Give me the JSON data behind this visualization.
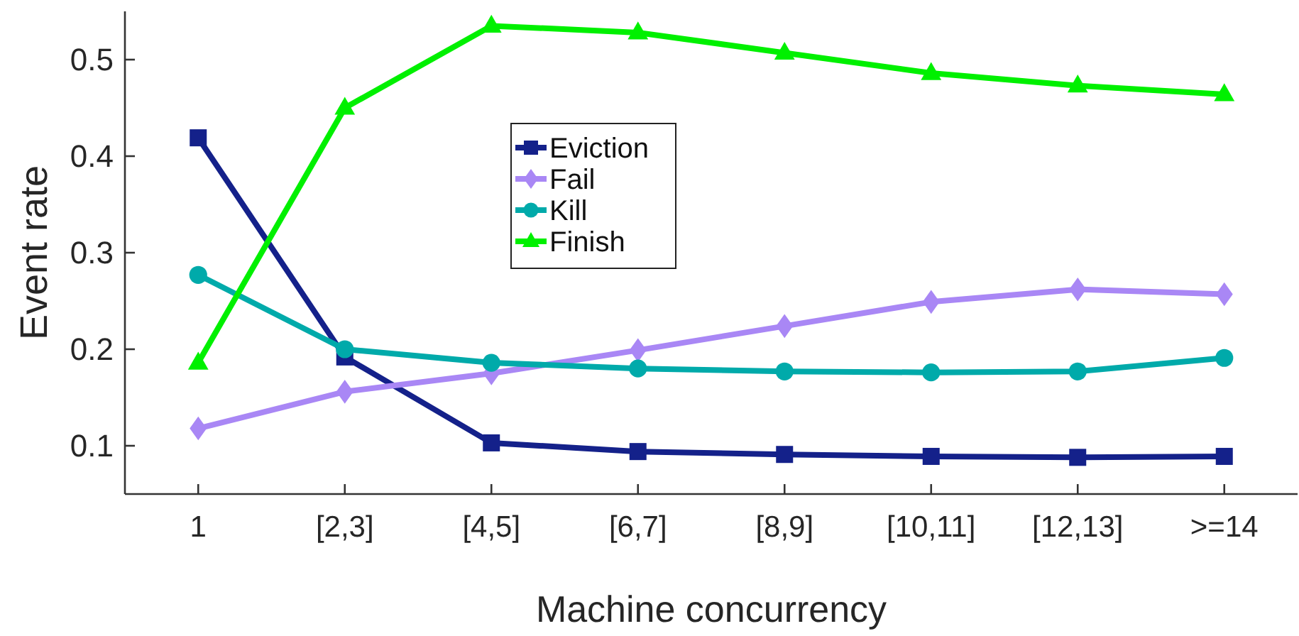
{
  "chart_data": {
    "type": "line",
    "xlabel": "Machine concurrency",
    "ylabel": "Event rate",
    "categories": [
      "1",
      "[2,3]",
      "[4,5]",
      "[6,7]",
      "[8,9]",
      "[10,11]",
      "[12,13]",
      ">=14"
    ],
    "ylim": [
      0.05,
      0.55
    ],
    "yticks": [
      0.1,
      0.2,
      0.3,
      0.4,
      0.5
    ],
    "grid": false,
    "legend": "top",
    "line_style": "solid",
    "series": [
      {
        "name": "Eviction",
        "color": "#14218a",
        "marker": "square",
        "values": [
          0.419,
          0.192,
          0.103,
          0.094,
          0.091,
          0.089,
          0.088,
          0.089
        ]
      },
      {
        "name": "Fail",
        "color": "#a987f5",
        "marker": "diamond",
        "values": [
          0.118,
          0.156,
          0.175,
          0.199,
          0.224,
          0.249,
          0.262,
          0.257
        ]
      },
      {
        "name": "Kill",
        "color": "#00aaaa",
        "marker": "circle",
        "values": [
          0.277,
          0.2,
          0.186,
          0.18,
          0.177,
          0.176,
          0.177,
          0.191
        ]
      },
      {
        "name": "Finish",
        "color": "#00f000",
        "marker": "triangle",
        "values": [
          0.186,
          0.45,
          0.535,
          0.528,
          0.507,
          0.486,
          0.473,
          0.464
        ]
      }
    ]
  }
}
